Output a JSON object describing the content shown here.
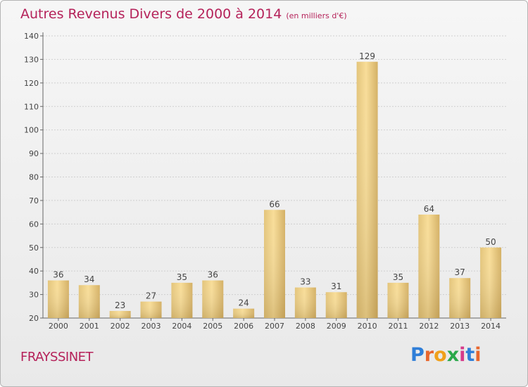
{
  "title": "Autres Revenus Divers de 2000 à 2014",
  "subtitle": "(en milliers d'€)",
  "commune": "FRAYSSINET",
  "logo": {
    "letters": [
      "P",
      "r",
      "o",
      "x",
      "i",
      "t",
      "i"
    ],
    "colors": [
      "#2f7ed8",
      "#e8662d",
      "#f0a01a",
      "#2aa84a",
      "#d63a8a",
      "#2f7ed8",
      "#e8662d"
    ]
  },
  "chart_data": {
    "type": "bar",
    "categories": [
      "2000",
      "2001",
      "2002",
      "2003",
      "2004",
      "2005",
      "2006",
      "2007",
      "2008",
      "2009",
      "2010",
      "2011",
      "2012",
      "2013",
      "2014"
    ],
    "values": [
      36,
      34,
      23,
      27,
      35,
      36,
      24,
      66,
      33,
      31,
      129,
      35,
      64,
      37,
      50
    ],
    "ylim": [
      20,
      140
    ],
    "yticks": [
      20,
      30,
      40,
      50,
      60,
      70,
      80,
      90,
      100,
      110,
      120,
      130,
      140
    ],
    "grid": true,
    "xlabel": "",
    "ylabel": ""
  }
}
